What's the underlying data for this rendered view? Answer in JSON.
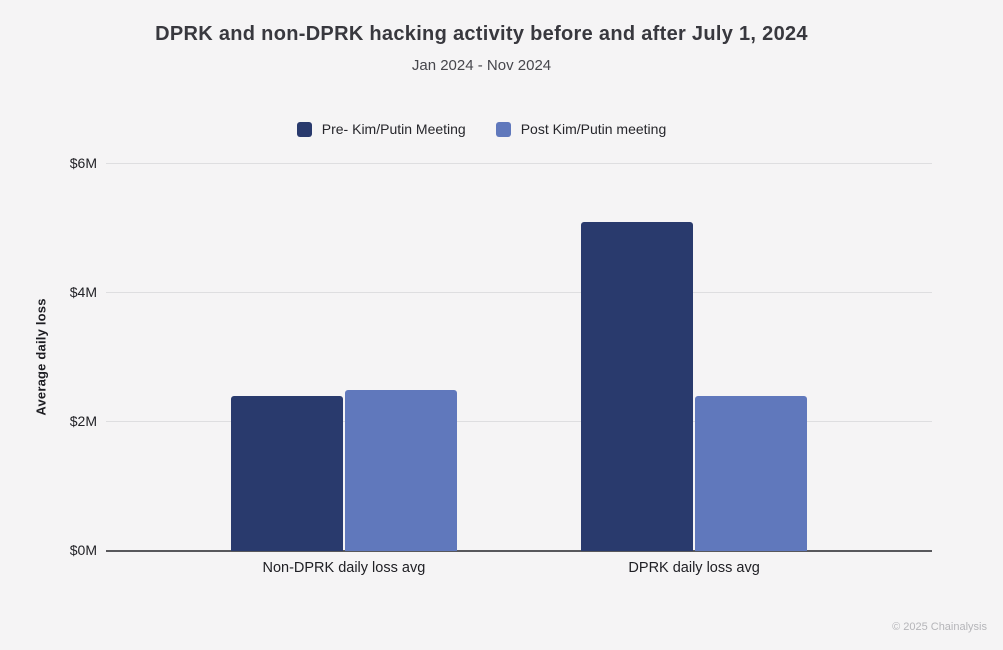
{
  "page": {
    "background_color": "#f5f4f5",
    "footer_credit": "© 2025 Chainalysis"
  },
  "chart_data": {
    "type": "bar",
    "title": "DPRK and non-DPRK hacking activity before and after July 1, 2024",
    "subtitle": "Jan 2024 - Nov 2024",
    "xlabel": "",
    "ylabel": "Average daily loss",
    "categories": [
      "Non-DPRK daily loss avg",
      "DPRK daily loss avg"
    ],
    "series": [
      {
        "name": "Pre- Kim/Putin Meeting",
        "color": "#293a6d",
        "values": [
          2.4,
          5.1
        ]
      },
      {
        "name": "Post Kim/Putin meeting",
        "color": "#6078bc",
        "values": [
          2.5,
          2.4
        ]
      }
    ],
    "ylim": [
      0,
      6
    ],
    "yticks": [
      0,
      2,
      4,
      6
    ],
    "ytick_labels": [
      "$0M",
      "$2M",
      "$4M",
      "$6M"
    ],
    "ytick_format": "$%dM",
    "grid": true,
    "legend_position": "top-center",
    "colors": {
      "gridline": "#dedee0",
      "axis_line": "#58585c",
      "title_text": "#38383e",
      "tick_text": "#222227"
    }
  }
}
